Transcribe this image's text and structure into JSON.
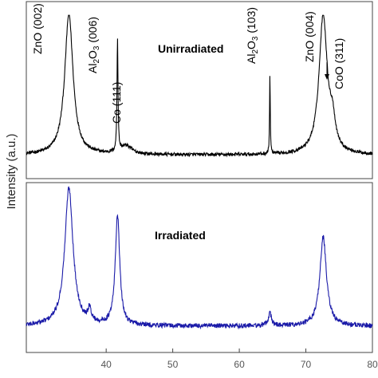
{
  "chart_data": {
    "type": "line",
    "ylabel": "Intensity (a.u.)",
    "xlim": [
      28,
      80
    ],
    "x_ticks": [
      40,
      50,
      60,
      70,
      80
    ],
    "ytick_labels": false,
    "grid": false,
    "panels": [
      {
        "label": "Unirradiated",
        "color": "#000000",
        "baseline": 0.06,
        "noise": 0.012,
        "peaks": [
          {
            "x": 34.4,
            "height": 1.0,
            "width": 0.75
          },
          {
            "x": 41.7,
            "height": 0.8,
            "width": 0.09
          },
          {
            "x": 43.0,
            "height": 0.06,
            "width": 1.0
          },
          {
            "x": 64.6,
            "height": 0.57,
            "width": 0.06
          },
          {
            "x": 72.6,
            "height": 0.98,
            "width": 0.75
          },
          {
            "x": 74.0,
            "height": 0.18,
            "width": 0.5
          }
        ],
        "annotations": [
          {
            "id": "zno-002",
            "text": "ZnO (002)",
            "x": 34.4
          },
          {
            "id": "al2o3-006",
            "text_parts": [
              "Al",
              "2",
              "O",
              "3",
              " (006)"
            ],
            "x": 41.5
          },
          {
            "id": "co-111",
            "text": "Co (111)",
            "x": 43.1
          },
          {
            "id": "al2o3-103",
            "text_parts": [
              "Al",
              "2",
              "O",
              "3",
              " (103)"
            ],
            "x": 64.3
          },
          {
            "id": "zno-004",
            "text": "ZnO (004)",
            "x": 72.0
          },
          {
            "id": "coo-311",
            "text": "CoO (311)",
            "x": 74.0
          }
        ]
      },
      {
        "label": "Irradiated",
        "color": "#1a1aa8",
        "baseline": 0.12,
        "noise": 0.016,
        "peaks": [
          {
            "x": 34.4,
            "height": 0.9,
            "width": 0.75
          },
          {
            "x": 37.5,
            "height": 0.08,
            "width": 0.3
          },
          {
            "x": 41.7,
            "height": 0.72,
            "width": 0.4
          },
          {
            "x": 64.6,
            "height": 0.08,
            "width": 0.3
          },
          {
            "x": 72.6,
            "height": 0.58,
            "width": 0.6
          }
        ],
        "annotations": []
      }
    ]
  }
}
